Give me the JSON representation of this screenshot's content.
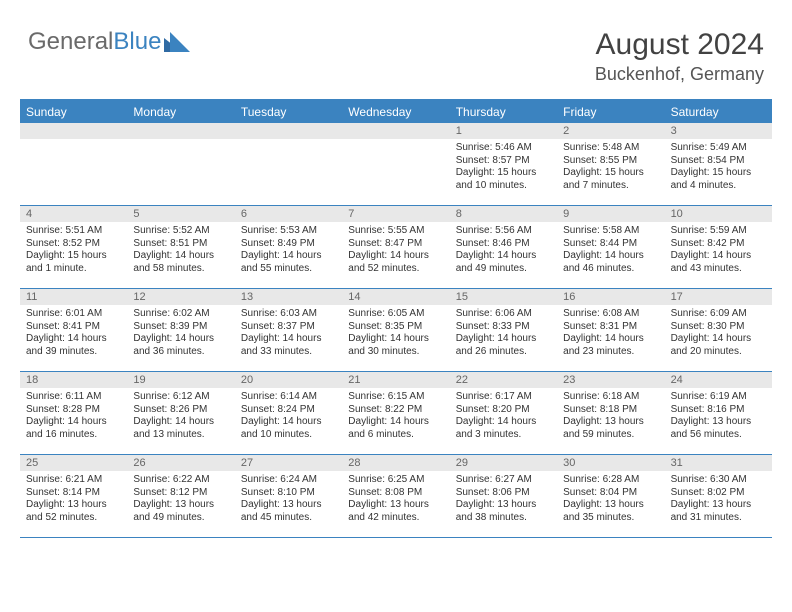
{
  "logo": {
    "text1": "General",
    "text2": "Blue"
  },
  "title": "August 2024",
  "location": "Buckenhof, Germany",
  "colors": {
    "brand_blue": "#3b83c0",
    "header_bg": "#3b83c0",
    "daynum_bg": "#e8e8e8",
    "text_gray": "#6a6a6a",
    "title_gray": "#424242",
    "body_text": "#333333",
    "white": "#ffffff"
  },
  "dow": [
    "Sunday",
    "Monday",
    "Tuesday",
    "Wednesday",
    "Thursday",
    "Friday",
    "Saturday"
  ],
  "weeks": [
    [
      {
        "n": "",
        "sr": "",
        "ss": "",
        "dl": ""
      },
      {
        "n": "",
        "sr": "",
        "ss": "",
        "dl": ""
      },
      {
        "n": "",
        "sr": "",
        "ss": "",
        "dl": ""
      },
      {
        "n": "",
        "sr": "",
        "ss": "",
        "dl": ""
      },
      {
        "n": "1",
        "sr": "Sunrise: 5:46 AM",
        "ss": "Sunset: 8:57 PM",
        "dl": "Daylight: 15 hours and 10 minutes."
      },
      {
        "n": "2",
        "sr": "Sunrise: 5:48 AM",
        "ss": "Sunset: 8:55 PM",
        "dl": "Daylight: 15 hours and 7 minutes."
      },
      {
        "n": "3",
        "sr": "Sunrise: 5:49 AM",
        "ss": "Sunset: 8:54 PM",
        "dl": "Daylight: 15 hours and 4 minutes."
      }
    ],
    [
      {
        "n": "4",
        "sr": "Sunrise: 5:51 AM",
        "ss": "Sunset: 8:52 PM",
        "dl": "Daylight: 15 hours and 1 minute."
      },
      {
        "n": "5",
        "sr": "Sunrise: 5:52 AM",
        "ss": "Sunset: 8:51 PM",
        "dl": "Daylight: 14 hours and 58 minutes."
      },
      {
        "n": "6",
        "sr": "Sunrise: 5:53 AM",
        "ss": "Sunset: 8:49 PM",
        "dl": "Daylight: 14 hours and 55 minutes."
      },
      {
        "n": "7",
        "sr": "Sunrise: 5:55 AM",
        "ss": "Sunset: 8:47 PM",
        "dl": "Daylight: 14 hours and 52 minutes."
      },
      {
        "n": "8",
        "sr": "Sunrise: 5:56 AM",
        "ss": "Sunset: 8:46 PM",
        "dl": "Daylight: 14 hours and 49 minutes."
      },
      {
        "n": "9",
        "sr": "Sunrise: 5:58 AM",
        "ss": "Sunset: 8:44 PM",
        "dl": "Daylight: 14 hours and 46 minutes."
      },
      {
        "n": "10",
        "sr": "Sunrise: 5:59 AM",
        "ss": "Sunset: 8:42 PM",
        "dl": "Daylight: 14 hours and 43 minutes."
      }
    ],
    [
      {
        "n": "11",
        "sr": "Sunrise: 6:01 AM",
        "ss": "Sunset: 8:41 PM",
        "dl": "Daylight: 14 hours and 39 minutes."
      },
      {
        "n": "12",
        "sr": "Sunrise: 6:02 AM",
        "ss": "Sunset: 8:39 PM",
        "dl": "Daylight: 14 hours and 36 minutes."
      },
      {
        "n": "13",
        "sr": "Sunrise: 6:03 AM",
        "ss": "Sunset: 8:37 PM",
        "dl": "Daylight: 14 hours and 33 minutes."
      },
      {
        "n": "14",
        "sr": "Sunrise: 6:05 AM",
        "ss": "Sunset: 8:35 PM",
        "dl": "Daylight: 14 hours and 30 minutes."
      },
      {
        "n": "15",
        "sr": "Sunrise: 6:06 AM",
        "ss": "Sunset: 8:33 PM",
        "dl": "Daylight: 14 hours and 26 minutes."
      },
      {
        "n": "16",
        "sr": "Sunrise: 6:08 AM",
        "ss": "Sunset: 8:31 PM",
        "dl": "Daylight: 14 hours and 23 minutes."
      },
      {
        "n": "17",
        "sr": "Sunrise: 6:09 AM",
        "ss": "Sunset: 8:30 PM",
        "dl": "Daylight: 14 hours and 20 minutes."
      }
    ],
    [
      {
        "n": "18",
        "sr": "Sunrise: 6:11 AM",
        "ss": "Sunset: 8:28 PM",
        "dl": "Daylight: 14 hours and 16 minutes."
      },
      {
        "n": "19",
        "sr": "Sunrise: 6:12 AM",
        "ss": "Sunset: 8:26 PM",
        "dl": "Daylight: 14 hours and 13 minutes."
      },
      {
        "n": "20",
        "sr": "Sunrise: 6:14 AM",
        "ss": "Sunset: 8:24 PM",
        "dl": "Daylight: 14 hours and 10 minutes."
      },
      {
        "n": "21",
        "sr": "Sunrise: 6:15 AM",
        "ss": "Sunset: 8:22 PM",
        "dl": "Daylight: 14 hours and 6 minutes."
      },
      {
        "n": "22",
        "sr": "Sunrise: 6:17 AM",
        "ss": "Sunset: 8:20 PM",
        "dl": "Daylight: 14 hours and 3 minutes."
      },
      {
        "n": "23",
        "sr": "Sunrise: 6:18 AM",
        "ss": "Sunset: 8:18 PM",
        "dl": "Daylight: 13 hours and 59 minutes."
      },
      {
        "n": "24",
        "sr": "Sunrise: 6:19 AM",
        "ss": "Sunset: 8:16 PM",
        "dl": "Daylight: 13 hours and 56 minutes."
      }
    ],
    [
      {
        "n": "25",
        "sr": "Sunrise: 6:21 AM",
        "ss": "Sunset: 8:14 PM",
        "dl": "Daylight: 13 hours and 52 minutes."
      },
      {
        "n": "26",
        "sr": "Sunrise: 6:22 AM",
        "ss": "Sunset: 8:12 PM",
        "dl": "Daylight: 13 hours and 49 minutes."
      },
      {
        "n": "27",
        "sr": "Sunrise: 6:24 AM",
        "ss": "Sunset: 8:10 PM",
        "dl": "Daylight: 13 hours and 45 minutes."
      },
      {
        "n": "28",
        "sr": "Sunrise: 6:25 AM",
        "ss": "Sunset: 8:08 PM",
        "dl": "Daylight: 13 hours and 42 minutes."
      },
      {
        "n": "29",
        "sr": "Sunrise: 6:27 AM",
        "ss": "Sunset: 8:06 PM",
        "dl": "Daylight: 13 hours and 38 minutes."
      },
      {
        "n": "30",
        "sr": "Sunrise: 6:28 AM",
        "ss": "Sunset: 8:04 PM",
        "dl": "Daylight: 13 hours and 35 minutes."
      },
      {
        "n": "31",
        "sr": "Sunrise: 6:30 AM",
        "ss": "Sunset: 8:02 PM",
        "dl": "Daylight: 13 hours and 31 minutes."
      }
    ]
  ]
}
